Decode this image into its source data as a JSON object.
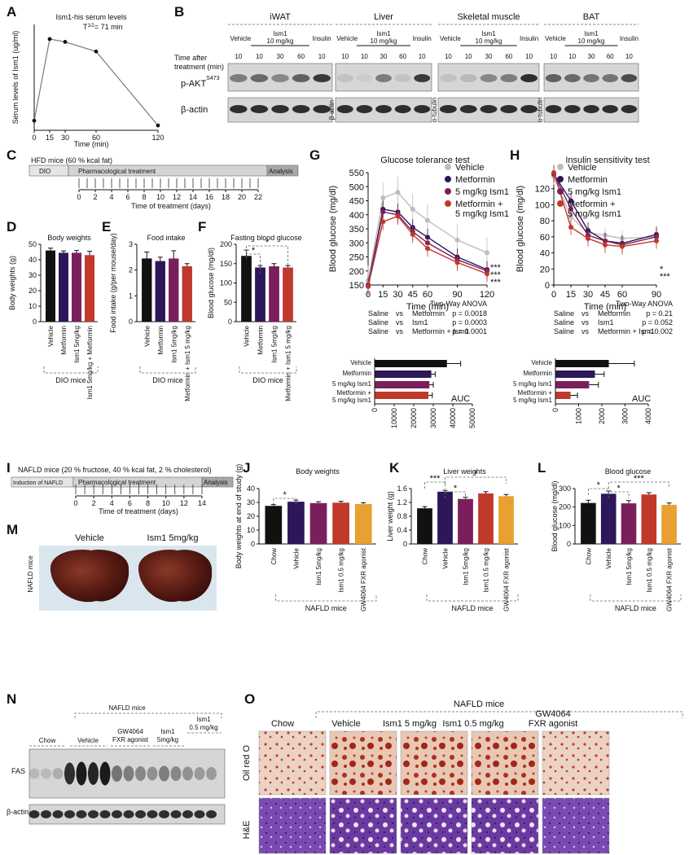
{
  "panels": {
    "A": {
      "label": "A",
      "title": "Ism1-his serum levels",
      "half_life": "T",
      "half_life_sup": "1/2",
      "half_life_value": "= 71 min",
      "ylabel": "Serum levels of Ism1 (ug/ml)",
      "xlabel": "Time (min)",
      "xticks": [
        "0",
        "15",
        "30",
        "60",
        "120"
      ],
      "yticks": [],
      "points": [
        {
          "x": 0,
          "y": 0.1
        },
        {
          "x": 15,
          "y": 0.95
        },
        {
          "x": 30,
          "y": 0.92
        },
        {
          "x": 60,
          "y": 0.82
        },
        {
          "x": 120,
          "y": 0.05
        }
      ]
    },
    "B": {
      "label": "B",
      "tissues": [
        "iWAT",
        "Liver",
        "Skeletal muscle",
        "BAT"
      ],
      "row_labels": [
        "Time after",
        "treatment (min)"
      ],
      "vehicle_label": "Vehicle",
      "ism1_label_1": "Ism1",
      "ism1_label_2": "10 mg/kg",
      "insulin_label": "Insulin",
      "times": [
        "10",
        "10",
        "30",
        "60",
        "10"
      ],
      "pakt_label": "p-AKT",
      "pakt_sup": "S473",
      "bactin_label": "β-actin",
      "side_labels": [
        "β-actin",
        "α-tubulin",
        "α-tubulin"
      ]
    },
    "C": {
      "label": "C",
      "title": "HFD mice (60 % kcal fat)",
      "dio_label": "DIO",
      "treat_label": "Pharmacological treatment",
      "analysis_label": "Analysis",
      "xticks": [
        "0",
        "2",
        "4",
        "6",
        "8",
        "10",
        "12",
        "14",
        "16",
        "18",
        "20",
        "22"
      ],
      "xlabel": "Time of treatment (days)"
    },
    "D": {
      "label": "D",
      "title": "Body weights",
      "ylabel": "Body weights (g)",
      "yticks": [
        "0",
        "10",
        "20",
        "30",
        "40",
        "50"
      ],
      "categories": [
        "Vehicle",
        "Metformin",
        "Ism1 5mg/kg",
        "Ism1 5mg/kg + Metformin"
      ],
      "group": "DIO mice"
    },
    "E": {
      "label": "E",
      "title": "Food intake",
      "ylabel": "Food intake (g/per mouse/day)",
      "yticks": [
        "0",
        "1",
        "2",
        "3"
      ],
      "categories": [
        "Vehicle",
        "Metformin",
        "Ism1 5mg/kg",
        "Metformin + Ism1 5 mg/kg"
      ],
      "group": "DIO mice"
    },
    "F": {
      "label": "F",
      "title": "Fasting blood glucose",
      "ylabel": "Blood glucose (mg/dl)",
      "yticks": [
        "0",
        "50",
        "100",
        "150",
        "200"
      ],
      "categories": [
        "Vehicle",
        "Metformin",
        "Ism1 5mg/kg",
        "Metformin + Ism1 5 mg/kg"
      ],
      "group": "DIO mice",
      "sig1": "*",
      "sig2": "*"
    },
    "G": {
      "label": "G",
      "title": "Glucose tolerance test",
      "ylabel": "Blood glucose (mg/dl)",
      "xlabel": "Time (min)",
      "legend": [
        "Vehicle",
        "Metformin",
        "5 mg/kg Ism1",
        "Metformin +",
        "5 mg/kg Ism1"
      ],
      "stars": [
        "***",
        "***",
        "***"
      ],
      "anova": "Two-Way ANOVA",
      "stats": [
        [
          "Saline",
          "vs",
          "Metformin",
          "p = 0.0018"
        ],
        [
          "Saline",
          "vs",
          "Ism1",
          "p = 0.0003"
        ],
        [
          "Saline",
          "vs",
          "Metformin + Ism1",
          "p = 0.0001"
        ]
      ],
      "auc_label": "AUC",
      "auc_cats": [
        "Vehicle",
        "Metformin",
        "5 mg/kg Ism1",
        "Metformin +",
        "5 mg/kg Ism1"
      ],
      "auc_ticks": [
        "0",
        "10000",
        "20000",
        "30000",
        "40000",
        "50000"
      ]
    },
    "H": {
      "label": "H",
      "title": "Insulin sensitivity test",
      "ylabel": "Blood glucose (mg/dl)",
      "xlabel": "Time (min)",
      "legend": [
        "Vehicle",
        "Metformin",
        "5 mg/kg Ism1",
        "Metformin +",
        "5 mg/kg Ism1"
      ],
      "stars": [
        "*",
        "***"
      ],
      "anova": "Two-Way ANOVA",
      "stats": [
        [
          "Saline",
          "vs",
          "Metformin",
          "p = 0.21"
        ],
        [
          "Saline",
          "vs",
          "Ism1",
          "p = 0.052"
        ],
        [
          "Saline",
          "vs",
          "Metformin + Ism1",
          "p = 0.002"
        ]
      ],
      "auc_label": "AUC",
      "auc_cats": [
        "Vehicle",
        "Metformin",
        "5 mg/kg Ism1",
        "Metformin +",
        "5 mg/kg Ism1"
      ],
      "auc_ticks": [
        "0",
        "1000",
        "2000",
        "3000",
        "4000"
      ]
    },
    "I": {
      "label": "I",
      "title": "NAFLD mice (20 % fructose, 40 % kcal fat, 2 % cholesterol)",
      "induction_label": "Induction of NAFLD",
      "treat_label": "Pharmacological treatment",
      "analysis_label": "Analysis",
      "xticks": [
        "0",
        "2",
        "4",
        "6",
        "8",
        "10",
        "12",
        "14"
      ],
      "xlabel": "Time of treatment (days)"
    },
    "J": {
      "label": "J",
      "title": "Body weights",
      "ylabel": "Body weights at end of study (g)",
      "yticks": [
        "0",
        "10",
        "20",
        "30",
        "40"
      ],
      "categories": [
        "Chow",
        "Vehicle",
        "Ism1 5mg/kg",
        "Ism1 0.5 mg/kg",
        "GW4064 FXR agonist"
      ],
      "group": "NAFLD mice",
      "sig": [
        "*"
      ]
    },
    "K": {
      "label": "K",
      "title": "Liver weights",
      "ylabel": "Liver weight (g)",
      "yticks": [
        "0",
        "0.4",
        "0.8",
        "1.2",
        "1.6"
      ],
      "categories": [
        "Chow",
        "Vehicle",
        "Ism1 5mg/kg",
        "Ism1 0.5 mg/kg",
        "GW4064 FXR agonist"
      ],
      "group": "NAFLD mice",
      "sig": [
        "***",
        "*",
        "*"
      ]
    },
    "L": {
      "label": "L",
      "title": "Blood glucose",
      "ylabel": "Blood glucose (mg/dl)",
      "yticks": [
        "0",
        "100",
        "200",
        "300"
      ],
      "categories": [
        "Chow",
        "Vehicle",
        "Ism1 5mg/kg",
        "Ism1 0.5 mg/kg",
        "GW4064 FXR agonist"
      ],
      "group": "NAFLD mice",
      "sig": [
        "*",
        "*",
        "***"
      ]
    },
    "M": {
      "label": "M",
      "vehicle": "Vehicle",
      "ism1": "Ism1 5mg/kg",
      "side": "NAFLD mice"
    },
    "N": {
      "label": "N",
      "group": "NAFLD mice",
      "cols": [
        "Chow",
        "Vehicle",
        "GW4064",
        "FXR agonist",
        "Ism1",
        "5mg/kg",
        "Ism1",
        "0.5 mg/kg"
      ],
      "fas": "FAS",
      "bactin": "β-actin"
    },
    "O": {
      "label": "O",
      "group": "NAFLD mice",
      "cols": [
        "Chow",
        "Vehicle",
        "Ism1 5 mg/kg",
        "Ism1 0.5 mg/kg",
        "GW4064",
        "FXR agonist"
      ],
      "rows": [
        "Oil red O",
        "H&E"
      ]
    }
  },
  "colors": {
    "black": "#111111",
    "purple": "#2d1659",
    "magenta": "#7a1f5c",
    "red": "#c0392b",
    "orange": "#e8a030",
    "grey": "#bdbdbd"
  },
  "chart_data": [
    {
      "type": "line",
      "panel": "A",
      "x": [
        0,
        15,
        30,
        60,
        120
      ],
      "xlim": [
        0,
        120
      ],
      "series": [
        {
          "values": [
            0.1,
            0.95,
            0.92,
            0.82,
            0.05
          ]
        }
      ]
    },
    {
      "type": "bar",
      "panel": "D",
      "categories": [
        "Vehicle",
        "Metformin",
        "Ism1 5mg/kg",
        "Ism1 5mg/kg + Metformin"
      ],
      "values": [
        46,
        44.5,
        44.5,
        43
      ],
      "errors": [
        1.5,
        1.2,
        1.5,
        2.5
      ],
      "ylim": [
        0,
        50
      ]
    },
    {
      "type": "bar",
      "panel": "E",
      "categories": [
        "Vehicle",
        "Metformin",
        "Ism1 5mg/kg",
        "Metformin + Ism1 5 mg/kg"
      ],
      "values": [
        2.45,
        2.35,
        2.45,
        2.15
      ],
      "errors": [
        0.25,
        0.15,
        0.3,
        0.1
      ],
      "ylim": [
        0,
        3
      ]
    },
    {
      "type": "bar",
      "panel": "F",
      "categories": [
        "Vehicle",
        "Metformin",
        "Ism1 5mg/kg",
        "Metformin + Ism1 5 mg/kg"
      ],
      "values": [
        170,
        140,
        143,
        140
      ],
      "errors": [
        15,
        5,
        7,
        5
      ],
      "ylim": [
        0,
        200
      ]
    },
    {
      "type": "line",
      "panel": "G",
      "x": [
        0,
        15,
        30,
        45,
        60,
        90,
        120
      ],
      "ylim": [
        0,
        550
      ],
      "series": [
        {
          "name": "Vehicle",
          "values": [
            165,
            460,
            480,
            420,
            380,
            310,
            265
          ]
        },
        {
          "name": "Metformin",
          "values": [
            150,
            420,
            410,
            355,
            320,
            250,
            205
          ]
        },
        {
          "name": "5 mg/kg Ism1",
          "values": [
            145,
            410,
            400,
            340,
            300,
            240,
            200
          ]
        },
        {
          "name": "Metformin + 5 mg/kg Ism1",
          "values": [
            145,
            375,
            395,
            330,
            280,
            230,
            190
          ]
        }
      ]
    },
    {
      "type": "line",
      "panel": "H",
      "x": [
        0,
        15,
        30,
        45,
        60,
        90
      ],
      "ylim": [
        0,
        140
      ],
      "series": [
        {
          "name": "Vehicle",
          "values": [
            135,
            85,
            65,
            62,
            58,
            60
          ]
        },
        {
          "name": "Metformin",
          "values": [
            138,
            105,
            68,
            55,
            52,
            63
          ]
        },
        {
          "name": "5 mg/kg Ism1",
          "values": [
            138,
            95,
            62,
            55,
            50,
            60
          ]
        },
        {
          "name": "Metformin + 5 mg/kg Ism1",
          "values": [
            140,
            72,
            58,
            50,
            48,
            55
          ]
        }
      ]
    },
    {
      "type": "bar",
      "panel": "G-AUC",
      "categories": [
        "Vehicle",
        "Metformin",
        "5 mg/kg Ism1",
        "Metformin + 5 mg/kg Ism1"
      ],
      "values": [
        37000,
        29000,
        28000,
        27500
      ],
      "errors": [
        7000,
        2000,
        2000,
        2000
      ],
      "xlim": [
        0,
        50000
      ]
    },
    {
      "type": "bar",
      "panel": "H-AUC",
      "categories": [
        "Vehicle",
        "Metformin",
        "5 mg/kg Ism1",
        "Metformin + 5 mg/kg Ism1"
      ],
      "values": [
        2300,
        1700,
        1450,
        650
      ],
      "errors": [
        1100,
        400,
        400,
        300
      ],
      "xlim": [
        0,
        4000
      ]
    },
    {
      "type": "bar",
      "panel": "J",
      "categories": [
        "Chow",
        "Vehicle",
        "Ism1 5mg/kg",
        "Ism1 0.5 mg/kg",
        "GW4064 FXR agonist"
      ],
      "values": [
        27.5,
        30.5,
        29.5,
        29.8,
        28.8
      ],
      "errors": [
        1,
        1.2,
        1,
        1,
        1
      ],
      "ylim": [
        0,
        40
      ]
    },
    {
      "type": "bar",
      "panel": "K",
      "categories": [
        "Chow",
        "Vehicle",
        "Ism1 5mg/kg",
        "Ism1 0.5 mg/kg",
        "GW4064 FXR agonist"
      ],
      "values": [
        1.03,
        1.51,
        1.3,
        1.46,
        1.38
      ],
      "errors": [
        0.05,
        0.04,
        0.05,
        0.05,
        0.05
      ],
      "ylim": [
        0,
        1.6
      ]
    },
    {
      "type": "bar",
      "panel": "L",
      "categories": [
        "Chow",
        "Vehicle",
        "Ism1 5mg/kg",
        "Ism1 0.5 mg/kg",
        "GW4064 FXR agonist"
      ],
      "values": [
        222,
        272,
        220,
        268,
        212
      ],
      "errors": [
        15,
        15,
        15,
        10,
        10
      ],
      "ylim": [
        0,
        300
      ]
    }
  ]
}
